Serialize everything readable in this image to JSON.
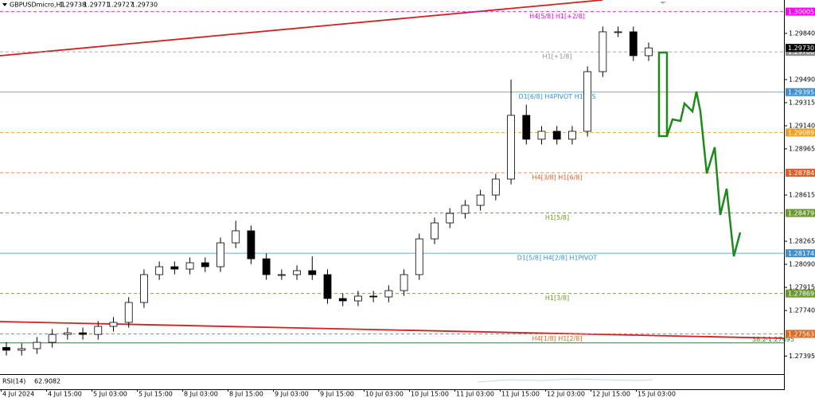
{
  "chart_data": {
    "type": "candlestick",
    "title": "GBPUSDmicro,H1",
    "last_bar": [
      1.29738,
      1.29771,
      1.29727,
      {
        "value": 1.2973,
        "label": "1.29730"
      }
    ],
    "open": [
      1.2746,
      1.27439,
      1.27451,
      1.27499,
      1.27559,
      1.27571,
      1.27559,
      1.2762,
      1.2765,
      1.27801,
      1.28012,
      1.28072,
      1.28054,
      1.28102,
      1.28072,
      1.28253,
      1.28344,
      1.28132,
      1.28012,
      1.28012,
      1.28042,
      1.28012,
      1.27831,
      1.27813,
      1.27849,
      1.27843,
      1.27891,
      1.28012,
      1.28283,
      1.28404,
      1.28476,
      1.28537,
      1.28615,
      1.28736,
      1.29219,
      1.29038,
      1.29098,
      1.29038,
      1.29098,
      1.2955,
      1.29852,
      1.29852,
      1.29671
    ],
    "high": [
      1.275,
      1.27491,
      1.27539,
      1.27599,
      1.27611,
      1.27611,
      1.2766,
      1.2769,
      1.27841,
      1.28052,
      1.28112,
      1.28112,
      1.28142,
      1.28142,
      1.28293,
      1.2842,
      1.28384,
      1.28172,
      1.28052,
      1.28082,
      1.2815,
      1.28052,
      1.27871,
      1.27889,
      1.27889,
      1.27931,
      1.28052,
      1.28323,
      1.28444,
      1.28516,
      1.28577,
      1.28655,
      1.28776,
      1.2949,
      1.293,
      1.29138,
      1.29138,
      1.29138,
      1.2959,
      1.29892,
      1.29892,
      1.29892,
      1.29771
    ],
    "low": [
      1.27399,
      1.27399,
      1.27411,
      1.27459,
      1.27519,
      1.27519,
      1.27519,
      1.2758,
      1.2761,
      1.27761,
      1.27972,
      1.28014,
      1.28014,
      1.28032,
      1.28032,
      1.28213,
      1.28092,
      1.27972,
      1.27972,
      1.27972,
      1.27972,
      1.27791,
      1.27773,
      1.27773,
      1.27803,
      1.27803,
      1.27851,
      1.27972,
      1.28243,
      1.28364,
      1.28436,
      1.28497,
      1.28575,
      1.28696,
      1.28998,
      1.28998,
      1.28998,
      1.28998,
      1.29058,
      1.2951,
      1.29812,
      1.29631,
      1.29631
    ],
    "close": [
      1.27439,
      1.27451,
      1.27499,
      1.27559,
      1.27571,
      1.27559,
      1.2762,
      1.2765,
      1.27801,
      1.28012,
      1.28072,
      1.28054,
      1.28102,
      1.28072,
      1.28253,
      1.28344,
      1.28132,
      1.28012,
      1.28012,
      1.28042,
      1.28012,
      1.27831,
      1.27813,
      1.27849,
      1.27843,
      1.27891,
      1.28012,
      1.28283,
      1.28404,
      1.28476,
      1.28537,
      1.28615,
      1.28736,
      1.29219,
      1.29038,
      1.29098,
      1.29038,
      1.29098,
      1.2955,
      1.29852,
      1.29852,
      1.29671,
      1.2973
    ],
    "ylim": [
      1.27258,
      1.30093
    ],
    "yticks": [
      {
        "value": 1.2984,
        "label": "1.29840"
      },
      {
        "value": 1.2949,
        "label": "1.29490"
      },
      1.29315,
      {
        "value": 1.2914,
        "label": "1.29140"
      },
      1.28965,
      1.28615,
      1.28265,
      {
        "value": 1.2809,
        "label": "1.28090"
      },
      1.27915,
      {
        "value": 1.2774,
        "label": "1.27740"
      },
      1.27395
    ],
    "x_labels": [
      "4 Jul 2024",
      "4 Jul 15:00",
      "5 Jul 03:00",
      "5 Jul 15:00",
      "8 Jul 03:00",
      "8 Jul 15:00",
      "9 Jul 03:00",
      "9 Jul 15:00",
      "10 Jul 03:00",
      "10 Jul 15:00",
      "11 Jul 03:00",
      "11 Jul 15:00",
      "12 Jul 03:00",
      "12 Jul 15:00",
      "15 Jul 03:00"
    ],
    "levels": [
      {
        "price": 1.30005,
        "name": "H4[5/8] H1[+2/8]",
        "color": "#ff00ff",
        "style": "dashed"
      },
      {
        "price": {
          "value": 1.297,
          "label": "1.29700"
        },
        "name": "H1[+1/8]",
        "color": "#909090",
        "style": "dashed"
      },
      {
        "price": 1.29395,
        "name": "D1[6/8] H4PIVOT  H1RES",
        "color": "#3d8fd6",
        "style": "solid"
      },
      {
        "price": 1.29089,
        "color": "#f0a020",
        "style": "dashed"
      },
      {
        "price": 1.28784,
        "name": "H4[3/8] H1[6/8]",
        "color": "#e0602a",
        "style": "dashed"
      },
      {
        "price": 1.28479,
        "name": "H1[5/8]",
        "color": "#6b9a2e",
        "style": "dashed"
      },
      {
        "price": 1.28174,
        "name": "D1[5/8] H4[2/8] H1PIVOT",
        "color": "#3d8fd6",
        "style": "solid"
      },
      {
        "price": 1.27869,
        "name": "H1[3/8]",
        "color": "#6b9a2e",
        "style": "dashed"
      },
      {
        "price": 1.27563,
        "name": "H4[1/8] H1[2/8]",
        "color": "#e06a20",
        "style": "dashed"
      }
    ],
    "fib": {
      "price": 1.27495,
      "name": "38.2",
      "label": "-1.27495",
      "color": "#2e7d32"
    },
    "current_price": {
      "value": 1.2973,
      "label": "1.29730"
    },
    "rsi": {
      "name": "RSI(14)",
      "value": 62.9082
    }
  }
}
